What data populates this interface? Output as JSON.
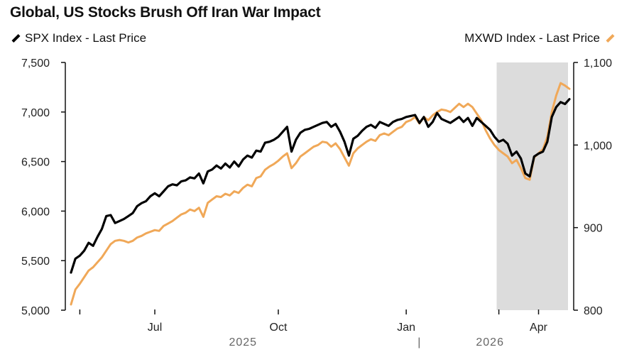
{
  "chart_data": {
    "type": "line",
    "title": "Global, US Stocks Brush Off Iran War Impact",
    "series": [
      {
        "name": "SPX Index - Last Price",
        "axis": "left",
        "color": "#000000",
        "values": [
          5380,
          5520,
          5550,
          5600,
          5680,
          5650,
          5740,
          5820,
          5950,
          5960,
          5880,
          5900,
          5920,
          5950,
          5980,
          6050,
          6080,
          6100,
          6150,
          6180,
          6150,
          6200,
          6250,
          6270,
          6260,
          6300,
          6310,
          6340,
          6330,
          6380,
          6280,
          6400,
          6420,
          6460,
          6430,
          6480,
          6440,
          6500,
          6450,
          6520,
          6560,
          6540,
          6610,
          6600,
          6690,
          6700,
          6720,
          6750,
          6800,
          6850,
          6600,
          6720,
          6790,
          6820,
          6830,
          6850,
          6870,
          6890,
          6900,
          6850,
          6880,
          6800,
          6700,
          6560,
          6730,
          6760,
          6810,
          6850,
          6870,
          6840,
          6900,
          6880,
          6860,
          6900,
          6920,
          6930,
          6950,
          6960,
          6970,
          6890,
          6950,
          6850,
          6900,
          6990,
          6930,
          6910,
          6890,
          6920,
          6950,
          6900,
          6940,
          6860,
          6940,
          6900,
          6860,
          6820,
          6750,
          6700,
          6720,
          6680,
          6560,
          6600,
          6530,
          6380,
          6350,
          6550,
          6580,
          6600,
          6700,
          6950,
          7050,
          7100,
          7080,
          7130
        ]
      },
      {
        "name": "MXWD Index - Last Price",
        "axis": "right",
        "color": "#F0A858",
        "values": [
          807,
          825,
          832,
          840,
          848,
          852,
          858,
          864,
          872,
          880,
          884,
          885,
          884,
          882,
          884,
          888,
          890,
          893,
          895,
          897,
          896,
          902,
          905,
          908,
          912,
          916,
          918,
          922,
          920,
          924,
          913,
          930,
          934,
          938,
          937,
          941,
          939,
          944,
          942,
          948,
          952,
          950,
          960,
          962,
          970,
          974,
          977,
          981,
          986,
          990,
          972,
          978,
          986,
          990,
          994,
          998,
          1000,
          1004,
          1003,
          998,
          1002,
          995,
          985,
          975,
          990,
          996,
          1000,
          1004,
          1007,
          1005,
          1012,
          1014,
          1012,
          1016,
          1020,
          1022,
          1028,
          1030,
          1034,
          1026,
          1034,
          1030,
          1036,
          1040,
          1043,
          1042,
          1040,
          1045,
          1050,
          1046,
          1050,
          1046,
          1038,
          1030,
          1018,
          1008,
          1000,
          994,
          990,
          986,
          978,
          982,
          972,
          960,
          958,
          985,
          990,
          995,
          1010,
          1040,
          1060,
          1075,
          1072,
          1068
        ]
      }
    ],
    "left_axis": {
      "ylim": [
        5000,
        7500
      ],
      "ticks": [
        "5,000",
        "5,500",
        "6,000",
        "6,500",
        "7,000",
        "7,500"
      ],
      "tick_values": [
        5000,
        5500,
        6000,
        6500,
        7000,
        7500
      ]
    },
    "right_axis": {
      "ylim": [
        800,
        1100
      ],
      "ticks": [
        "800",
        "900",
        "1,000",
        "1,100"
      ],
      "tick_values": [
        800,
        900,
        1000,
        1100
      ]
    },
    "x_axis": {
      "n_points": 114,
      "month_labels": [
        {
          "label": "Jul",
          "index": 19
        },
        {
          "label": "Oct",
          "index": 47
        },
        {
          "label": "Jan",
          "index": 76
        },
        {
          "label": "Apr",
          "index": 106
        }
      ],
      "minor_ticks": [
        2,
        19,
        47,
        76,
        97,
        106
      ],
      "year_labels": [
        {
          "label": "2025",
          "index": 39
        },
        {
          "label": "2026",
          "index": 95
        }
      ],
      "year_divider": "|",
      "year_divider_index": 79
    },
    "shaded_region": {
      "start_index": 96.5,
      "end_index": 113.5,
      "color": "#DCDCDC",
      "meaning": "Iran war period"
    },
    "grid": false,
    "legend_placement": "top"
  }
}
